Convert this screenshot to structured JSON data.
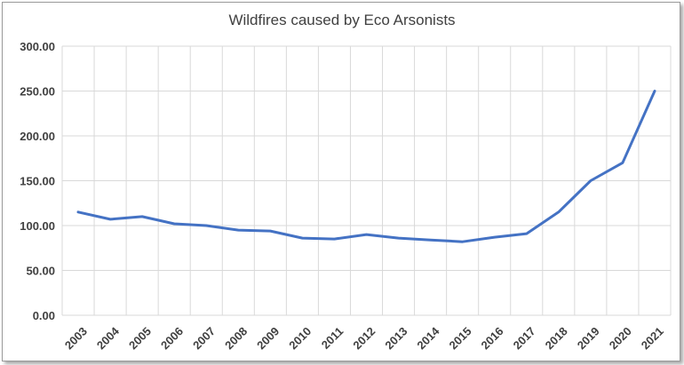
{
  "chart_data": {
    "type": "line",
    "title": "Wildfires caused by Eco Arsonists",
    "xlabel": "",
    "ylabel": "",
    "ylim": [
      0,
      300
    ],
    "y_ticks": [
      "0.00",
      "50.00",
      "100.00",
      "150.00",
      "200.00",
      "250.00",
      "300.00"
    ],
    "categories": [
      "2003",
      "2004",
      "2005",
      "2006",
      "2007",
      "2008",
      "2009",
      "2010",
      "2011",
      "2012",
      "2013",
      "2014",
      "2015",
      "2016",
      "2017",
      "2018",
      "2019",
      "2020",
      "2021"
    ],
    "series": [
      {
        "values": [
          115,
          107,
          110,
          102,
          100,
          95,
          94,
          86,
          85,
          90,
          86,
          84,
          82,
          87,
          91,
          115,
          150,
          170,
          250
        ],
        "color": "#4472c4"
      }
    ],
    "grid": true,
    "legend": "none"
  }
}
